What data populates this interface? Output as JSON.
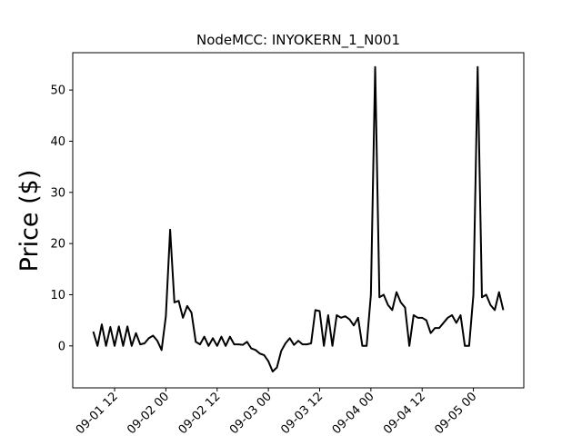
{
  "chart_data": {
    "type": "line",
    "title": "NodeMCC: INYOKERN_1_N001",
    "ylabel": "Price ($)",
    "x": [
      "09-01 07",
      "09-01 08",
      "09-01 09",
      "09-01 10",
      "09-01 11",
      "09-01 12",
      "09-01 13",
      "09-01 14",
      "09-01 15",
      "09-01 16",
      "09-01 17",
      "09-01 18",
      "09-01 19",
      "09-01 20",
      "09-01 21",
      "09-01 22",
      "09-01 23",
      "09-02 00",
      "09-02 01",
      "09-02 02",
      "09-02 03",
      "09-02 04",
      "09-02 05",
      "09-02 06",
      "09-02 07",
      "09-02 08",
      "09-02 09",
      "09-02 10",
      "09-02 11",
      "09-02 12",
      "09-02 13",
      "09-02 14",
      "09-02 15",
      "09-02 16",
      "09-02 17",
      "09-02 18",
      "09-02 19",
      "09-02 20",
      "09-02 21",
      "09-02 22",
      "09-02 23",
      "09-03 00",
      "09-03 01",
      "09-03 02",
      "09-03 03",
      "09-03 04",
      "09-03 05",
      "09-03 06",
      "09-03 07",
      "09-03 08",
      "09-03 09",
      "09-03 10",
      "09-03 11",
      "09-03 12",
      "09-03 13",
      "09-03 14",
      "09-03 15",
      "09-03 16",
      "09-03 17",
      "09-03 18",
      "09-03 19",
      "09-03 20",
      "09-03 21",
      "09-03 22",
      "09-03 23",
      "09-04 00",
      "09-04 01",
      "09-04 02",
      "09-04 03",
      "09-04 04",
      "09-04 05",
      "09-04 06",
      "09-04 07",
      "09-04 08",
      "09-04 09",
      "09-04 10",
      "09-04 11",
      "09-04 12",
      "09-04 13",
      "09-04 14",
      "09-04 15",
      "09-04 16",
      "09-04 17",
      "09-04 18",
      "09-04 19",
      "09-04 20",
      "09-04 21",
      "09-04 22",
      "09-04 23",
      "09-05 00",
      "09-05 01",
      "09-05 02",
      "09-05 03",
      "09-05 04",
      "09-05 05",
      "09-05 06",
      "09-05 07"
    ],
    "values": [
      2.8,
      0,
      4.2,
      0,
      3.7,
      0,
      3.8,
      0,
      3.8,
      0,
      2.5,
      0.3,
      0.5,
      1.5,
      2.0,
      1.0,
      -0.8,
      5.8,
      22.7,
      8.5,
      8.8,
      5.5,
      7.8,
      6.5,
      0.8,
      0.3,
      1.8,
      0,
      1.5,
      0,
      1.8,
      0,
      1.8,
      0.3,
      0.3,
      0.2,
      0.8,
      -0.5,
      -0.8,
      -1.5,
      -1.8,
      -3,
      -5,
      -4.2,
      -1,
      0.5,
      1.5,
      0.2,
      1.0,
      0.3,
      0.3,
      0.5,
      7,
      6.8,
      0,
      6,
      0,
      6,
      5.5,
      5.8,
      5.2,
      4,
      5.5,
      0,
      0,
      10,
      54.5,
      9.5,
      10,
      8,
      7,
      10.5,
      8.5,
      7.5,
      0,
      6,
      5.5,
      5.5,
      5,
      2.5,
      3.5,
      3.5,
      4.5,
      5.5,
      6,
      4.5,
      6,
      0,
      0,
      10,
      54.5,
      9.5,
      10,
      8,
      7,
      10.5,
      7
    ],
    "color": "#000000",
    "xlim": [
      "09-01 02:12",
      "09-05 11:48"
    ],
    "xticks": [
      "09-01 12",
      "09-02 00",
      "09-02 12",
      "09-03 00",
      "09-03 12",
      "09-04 00",
      "09-04 12",
      "09-05 00"
    ],
    "ylim": [
      -8.2,
      57.3
    ],
    "yticks": [
      0,
      10,
      20,
      30,
      40,
      50
    ]
  }
}
